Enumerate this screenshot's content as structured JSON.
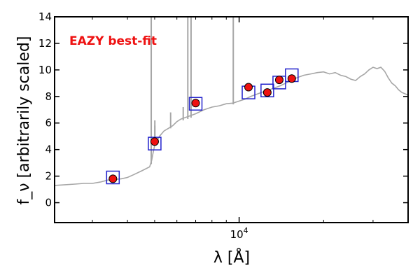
{
  "chart_data": {
    "type": "scatter",
    "title": "",
    "xlabel": "λ [Å]",
    "ylabel": "f_ν [arbitrarily scaled]",
    "xscale": "log",
    "xlim": [
      2200,
      40000
    ],
    "ylim": [
      -1.5,
      14
    ],
    "y_ticks": [
      0,
      2,
      4,
      6,
      8,
      10,
      12,
      14
    ],
    "x_major_ticks": [
      {
        "value": 10000,
        "base": "10",
        "exp": "4"
      }
    ],
    "x_minor_ticks": [
      3000,
      4000,
      5000,
      6000,
      7000,
      8000,
      9000,
      20000,
      30000
    ],
    "annotation": {
      "text": "EAZY best-fit",
      "color": "#ee1111"
    },
    "model_color": "#a6a6a6",
    "template_spectrum": {
      "x": [
        2200,
        2400,
        2600,
        2800,
        3000,
        3200,
        3400,
        3600,
        3800,
        4000,
        4200,
        4500,
        4800,
        4880,
        4920,
        5000,
        5200,
        5400,
        5600,
        5800,
        6000,
        6200,
        6600,
        7000,
        7500,
        8000,
        8500,
        9000,
        9500,
        10000,
        10500,
        11000,
        12000,
        13000,
        14000,
        15000,
        16000,
        17000,
        18000,
        19000,
        20000,
        21000,
        22000,
        23000,
        24000,
        25000,
        26000,
        27000,
        28000,
        29000,
        30000,
        31000,
        32000,
        33000,
        34000,
        35000,
        36000,
        37000,
        38000,
        39000,
        40000
      ],
      "y": [
        1.3,
        1.35,
        1.4,
        1.45,
        1.45,
        1.55,
        1.7,
        1.75,
        1.8,
        1.9,
        2.1,
        2.4,
        2.7,
        3.2,
        3.6,
        4.3,
        5.0,
        5.4,
        5.6,
        5.8,
        6.1,
        6.3,
        6.5,
        6.7,
        7.0,
        7.2,
        7.3,
        7.45,
        7.5,
        7.65,
        7.8,
        8.0,
        8.3,
        8.55,
        8.8,
        9.1,
        9.4,
        9.6,
        9.7,
        9.8,
        9.85,
        9.7,
        9.8,
        9.6,
        9.5,
        9.3,
        9.2,
        9.5,
        9.7,
        10.0,
        10.2,
        10.1,
        10.2,
        9.9,
        9.4,
        9.0,
        8.8,
        8.5,
        8.3,
        8.2,
        8.1
      ]
    },
    "emission_lines": [
      {
        "x": 4861,
        "base": 2.9,
        "peak": 14
      },
      {
        "x": 5007,
        "base": 4.6,
        "peak": 6.2
      },
      {
        "x": 5007,
        "base": 4.8,
        "peak": 5.8
      },
      {
        "x": 5700,
        "base": 5.6,
        "peak": 6.8
      },
      {
        "x": 6563,
        "base": 6.3,
        "peak": 14
      },
      {
        "x": 6740,
        "base": 6.4,
        "peak": 14
      },
      {
        "x": 6320,
        "base": 6.2,
        "peak": 7.2
      },
      {
        "x": 9530,
        "base": 7.4,
        "peak": 14
      }
    ],
    "series": [
      {
        "marker": "open-square",
        "color": "#2222cc",
        "x": [
          3550,
          5000,
          7000,
          10800,
          12600,
          13900,
          15400
        ],
        "y": [
          1.9,
          4.45,
          7.45,
          8.3,
          8.45,
          9.05,
          9.6
        ]
      },
      {
        "marker": "filled-circle",
        "color": "#ee1111",
        "x": [
          3550,
          5000,
          7000,
          10800,
          12600,
          13900,
          15400
        ],
        "y": [
          1.8,
          4.6,
          7.5,
          8.7,
          8.3,
          9.25,
          9.35
        ]
      }
    ]
  }
}
